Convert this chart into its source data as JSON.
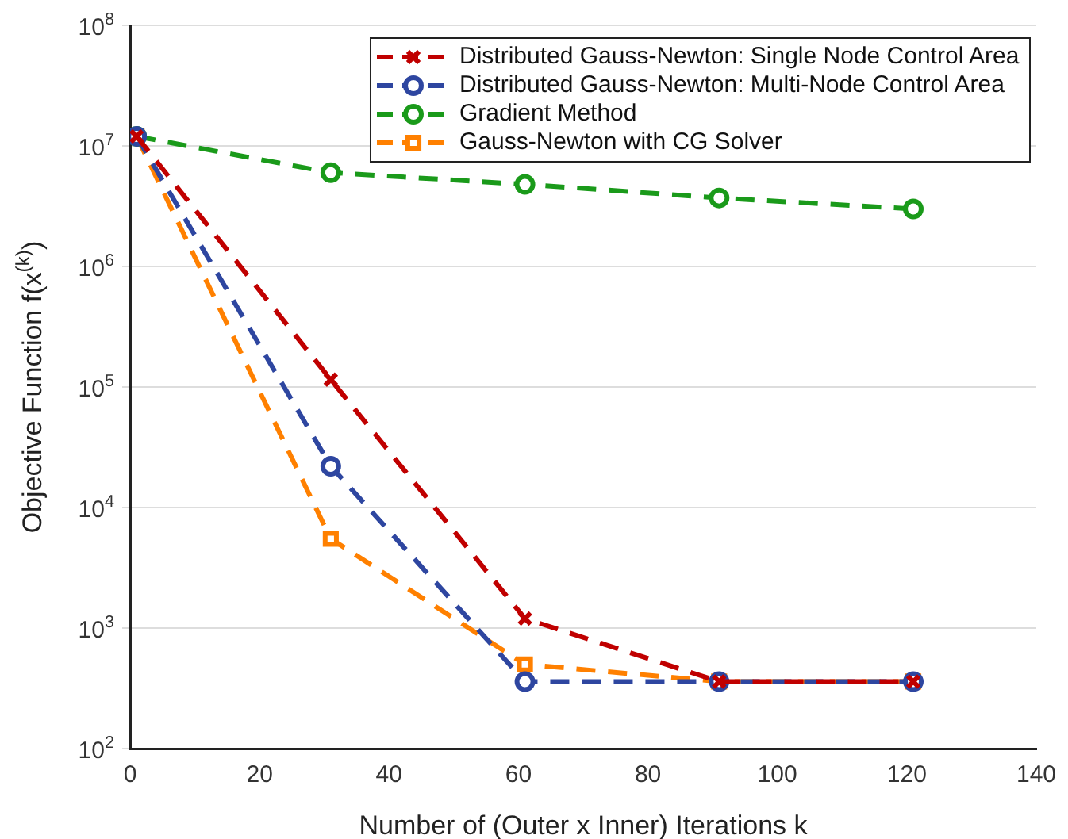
{
  "chart_data": {
    "type": "line",
    "xlabel": "Number of (Outer x Inner) Iterations k",
    "ylabel": "Objective Function f(x$^{(k)}$)",
    "x": [
      1,
      31,
      61,
      91,
      121
    ],
    "series": [
      {
        "name": "Distributed Gauss-Newton: Single Node Control Area",
        "color": "#c00000",
        "marker": "cross",
        "values": [
          12000000,
          115000,
          1200,
          360,
          360
        ]
      },
      {
        "name": "Distributed Gauss-Newton: Multi-Node Control Area",
        "color": "#2e46a0",
        "marker": "circle",
        "values": [
          12000000,
          22000,
          360,
          360,
          360
        ]
      },
      {
        "name": "Gradient Method",
        "color": "#1a9a1a",
        "marker": "circle",
        "values": [
          12000000,
          6000000,
          4800000,
          3700000,
          3000000
        ]
      },
      {
        "name": "Gauss-Newton with CG Solver",
        "color": "#ff8000",
        "marker": "square",
        "values": [
          12000000,
          5500,
          500,
          360,
          360
        ]
      }
    ],
    "log": "y",
    "xlim": [
      0,
      140
    ],
    "xticks": [
      0,
      20,
      40,
      60,
      80,
      100,
      120,
      140
    ],
    "ylim": [
      100,
      100000000
    ],
    "yticks": [
      {
        "value": 100,
        "label": "10$^{2}$"
      },
      {
        "value": 1000,
        "label": "10$^{3}$"
      },
      {
        "value": 10000,
        "label": "10$^{4}$"
      },
      {
        "value": 100000,
        "label": "10$^{5}$"
      },
      {
        "value": 1000000,
        "label": "10$^{6}$"
      },
      {
        "value": 10000000,
        "label": "10$^{7}$"
      },
      {
        "value": 100000000,
        "label": "10$^{8}$"
      }
    ],
    "grid": "y",
    "legend": "top right",
    "line_style": "dashed"
  }
}
